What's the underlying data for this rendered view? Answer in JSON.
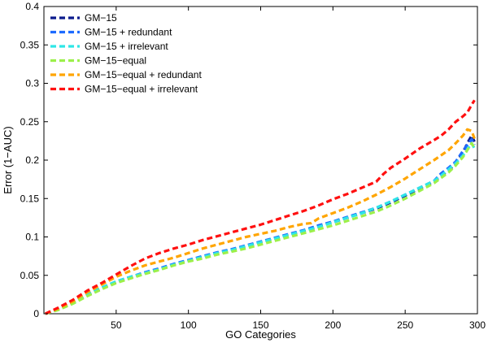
{
  "chart_data": {
    "type": "line",
    "title": "",
    "xlabel": "GO Categories",
    "ylabel": "Error (1−AUC)",
    "xlim": [
      0,
      300
    ],
    "ylim": [
      0,
      0.4
    ],
    "xticks": [
      50,
      100,
      150,
      200,
      250,
      300
    ],
    "xtick_labels": [
      "50",
      "100",
      "150",
      "200",
      "250",
      "300"
    ],
    "yticks": [
      0,
      0.05,
      0.1,
      0.15,
      0.2,
      0.25,
      0.3,
      0.35,
      0.4
    ],
    "ytick_labels": [
      "0",
      "0.05",
      "0.1",
      "0.15",
      "0.2",
      "0.25",
      "0.3",
      "0.35",
      "0.4"
    ],
    "grid": false,
    "legend_position": "top-left",
    "series": [
      {
        "name": "GM−15",
        "color": "#0a1a8c",
        "x": [
          1,
          10,
          20,
          30,
          40,
          50,
          60,
          70,
          80,
          90,
          100,
          110,
          120,
          130,
          140,
          150,
          160,
          170,
          180,
          190,
          200,
          210,
          220,
          230,
          240,
          250,
          260,
          270,
          275,
          280,
          285,
          290,
          293,
          296,
          298
        ],
        "y": [
          0.0,
          0.006,
          0.014,
          0.024,
          0.033,
          0.041,
          0.047,
          0.053,
          0.058,
          0.064,
          0.069,
          0.074,
          0.079,
          0.083,
          0.088,
          0.093,
          0.098,
          0.103,
          0.108,
          0.114,
          0.119,
          0.125,
          0.131,
          0.137,
          0.145,
          0.154,
          0.163,
          0.172,
          0.18,
          0.186,
          0.196,
          0.21,
          0.222,
          0.232,
          0.224
        ]
      },
      {
        "name": "GM−15 + redundant",
        "color": "#1e6bff",
        "x": [
          1,
          10,
          20,
          30,
          40,
          50,
          60,
          70,
          80,
          90,
          100,
          110,
          120,
          130,
          140,
          150,
          160,
          170,
          180,
          190,
          200,
          210,
          220,
          230,
          240,
          250,
          260,
          270,
          275,
          280,
          285,
          290,
          293,
          296,
          298
        ],
        "y": [
          0.0,
          0.006,
          0.015,
          0.025,
          0.034,
          0.042,
          0.048,
          0.054,
          0.059,
          0.065,
          0.07,
          0.075,
          0.08,
          0.084,
          0.089,
          0.094,
          0.099,
          0.104,
          0.109,
          0.115,
          0.12,
          0.126,
          0.132,
          0.138,
          0.146,
          0.155,
          0.164,
          0.173,
          0.183,
          0.19,
          0.198,
          0.212,
          0.22,
          0.227,
          0.22
        ]
      },
      {
        "name": "GM−15 + irrelevant",
        "color": "#2ee6e6",
        "x": [
          1,
          10,
          20,
          30,
          40,
          50,
          60,
          70,
          80,
          90,
          100,
          110,
          120,
          130,
          140,
          150,
          160,
          170,
          180,
          190,
          200,
          210,
          220,
          230,
          240,
          250,
          260,
          270,
          275,
          280,
          285,
          290,
          293,
          296,
          298
        ],
        "y": [
          0.0,
          0.006,
          0.014,
          0.025,
          0.034,
          0.042,
          0.048,
          0.053,
          0.058,
          0.064,
          0.069,
          0.074,
          0.079,
          0.083,
          0.088,
          0.093,
          0.098,
          0.103,
          0.108,
          0.113,
          0.119,
          0.125,
          0.131,
          0.138,
          0.146,
          0.155,
          0.164,
          0.173,
          0.18,
          0.188,
          0.196,
          0.206,
          0.214,
          0.222,
          0.215
        ]
      },
      {
        "name": "GM−15−equal",
        "color": "#9cf04a",
        "x": [
          1,
          10,
          20,
          30,
          40,
          50,
          60,
          70,
          80,
          90,
          100,
          110,
          120,
          130,
          140,
          150,
          160,
          170,
          180,
          190,
          200,
          210,
          220,
          230,
          240,
          250,
          260,
          270,
          275,
          280,
          285,
          290,
          293,
          296,
          298
        ],
        "y": [
          0.0,
          0.005,
          0.013,
          0.023,
          0.032,
          0.04,
          0.046,
          0.052,
          0.057,
          0.063,
          0.068,
          0.072,
          0.077,
          0.081,
          0.085,
          0.09,
          0.095,
          0.1,
          0.105,
          0.11,
          0.115,
          0.121,
          0.127,
          0.133,
          0.141,
          0.15,
          0.16,
          0.17,
          0.177,
          0.184,
          0.193,
          0.204,
          0.213,
          0.222,
          0.216
        ]
      },
      {
        "name": "GM−15−equal + redundant",
        "color": "#ffa500",
        "x": [
          1,
          10,
          20,
          30,
          40,
          50,
          60,
          70,
          80,
          90,
          100,
          110,
          120,
          130,
          140,
          150,
          160,
          170,
          180,
          185,
          190,
          200,
          210,
          220,
          230,
          240,
          250,
          260,
          270,
          280,
          285,
          290,
          293,
          296,
          298
        ],
        "y": [
          0.0,
          0.007,
          0.016,
          0.028,
          0.038,
          0.048,
          0.056,
          0.063,
          0.068,
          0.073,
          0.079,
          0.085,
          0.09,
          0.095,
          0.1,
          0.104,
          0.108,
          0.113,
          0.117,
          0.118,
          0.124,
          0.131,
          0.138,
          0.146,
          0.155,
          0.165,
          0.176,
          0.188,
          0.2,
          0.213,
          0.222,
          0.232,
          0.24,
          0.238,
          0.228
        ]
      },
      {
        "name": "GM−15−equal + irrelevant",
        "color": "#ff1010",
        "x": [
          1,
          10,
          20,
          30,
          40,
          50,
          60,
          70,
          80,
          90,
          100,
          110,
          120,
          130,
          140,
          150,
          160,
          170,
          180,
          190,
          200,
          210,
          220,
          230,
          235,
          240,
          250,
          260,
          270,
          275,
          280,
          285,
          290,
          293,
          296,
          298
        ],
        "y": [
          0.0,
          0.008,
          0.018,
          0.03,
          0.04,
          0.051,
          0.062,
          0.072,
          0.079,
          0.085,
          0.09,
          0.096,
          0.101,
          0.106,
          0.111,
          0.116,
          0.122,
          0.128,
          0.134,
          0.141,
          0.149,
          0.156,
          0.164,
          0.172,
          0.182,
          0.19,
          0.202,
          0.215,
          0.226,
          0.232,
          0.24,
          0.25,
          0.257,
          0.262,
          0.272,
          0.278
        ]
      }
    ]
  }
}
